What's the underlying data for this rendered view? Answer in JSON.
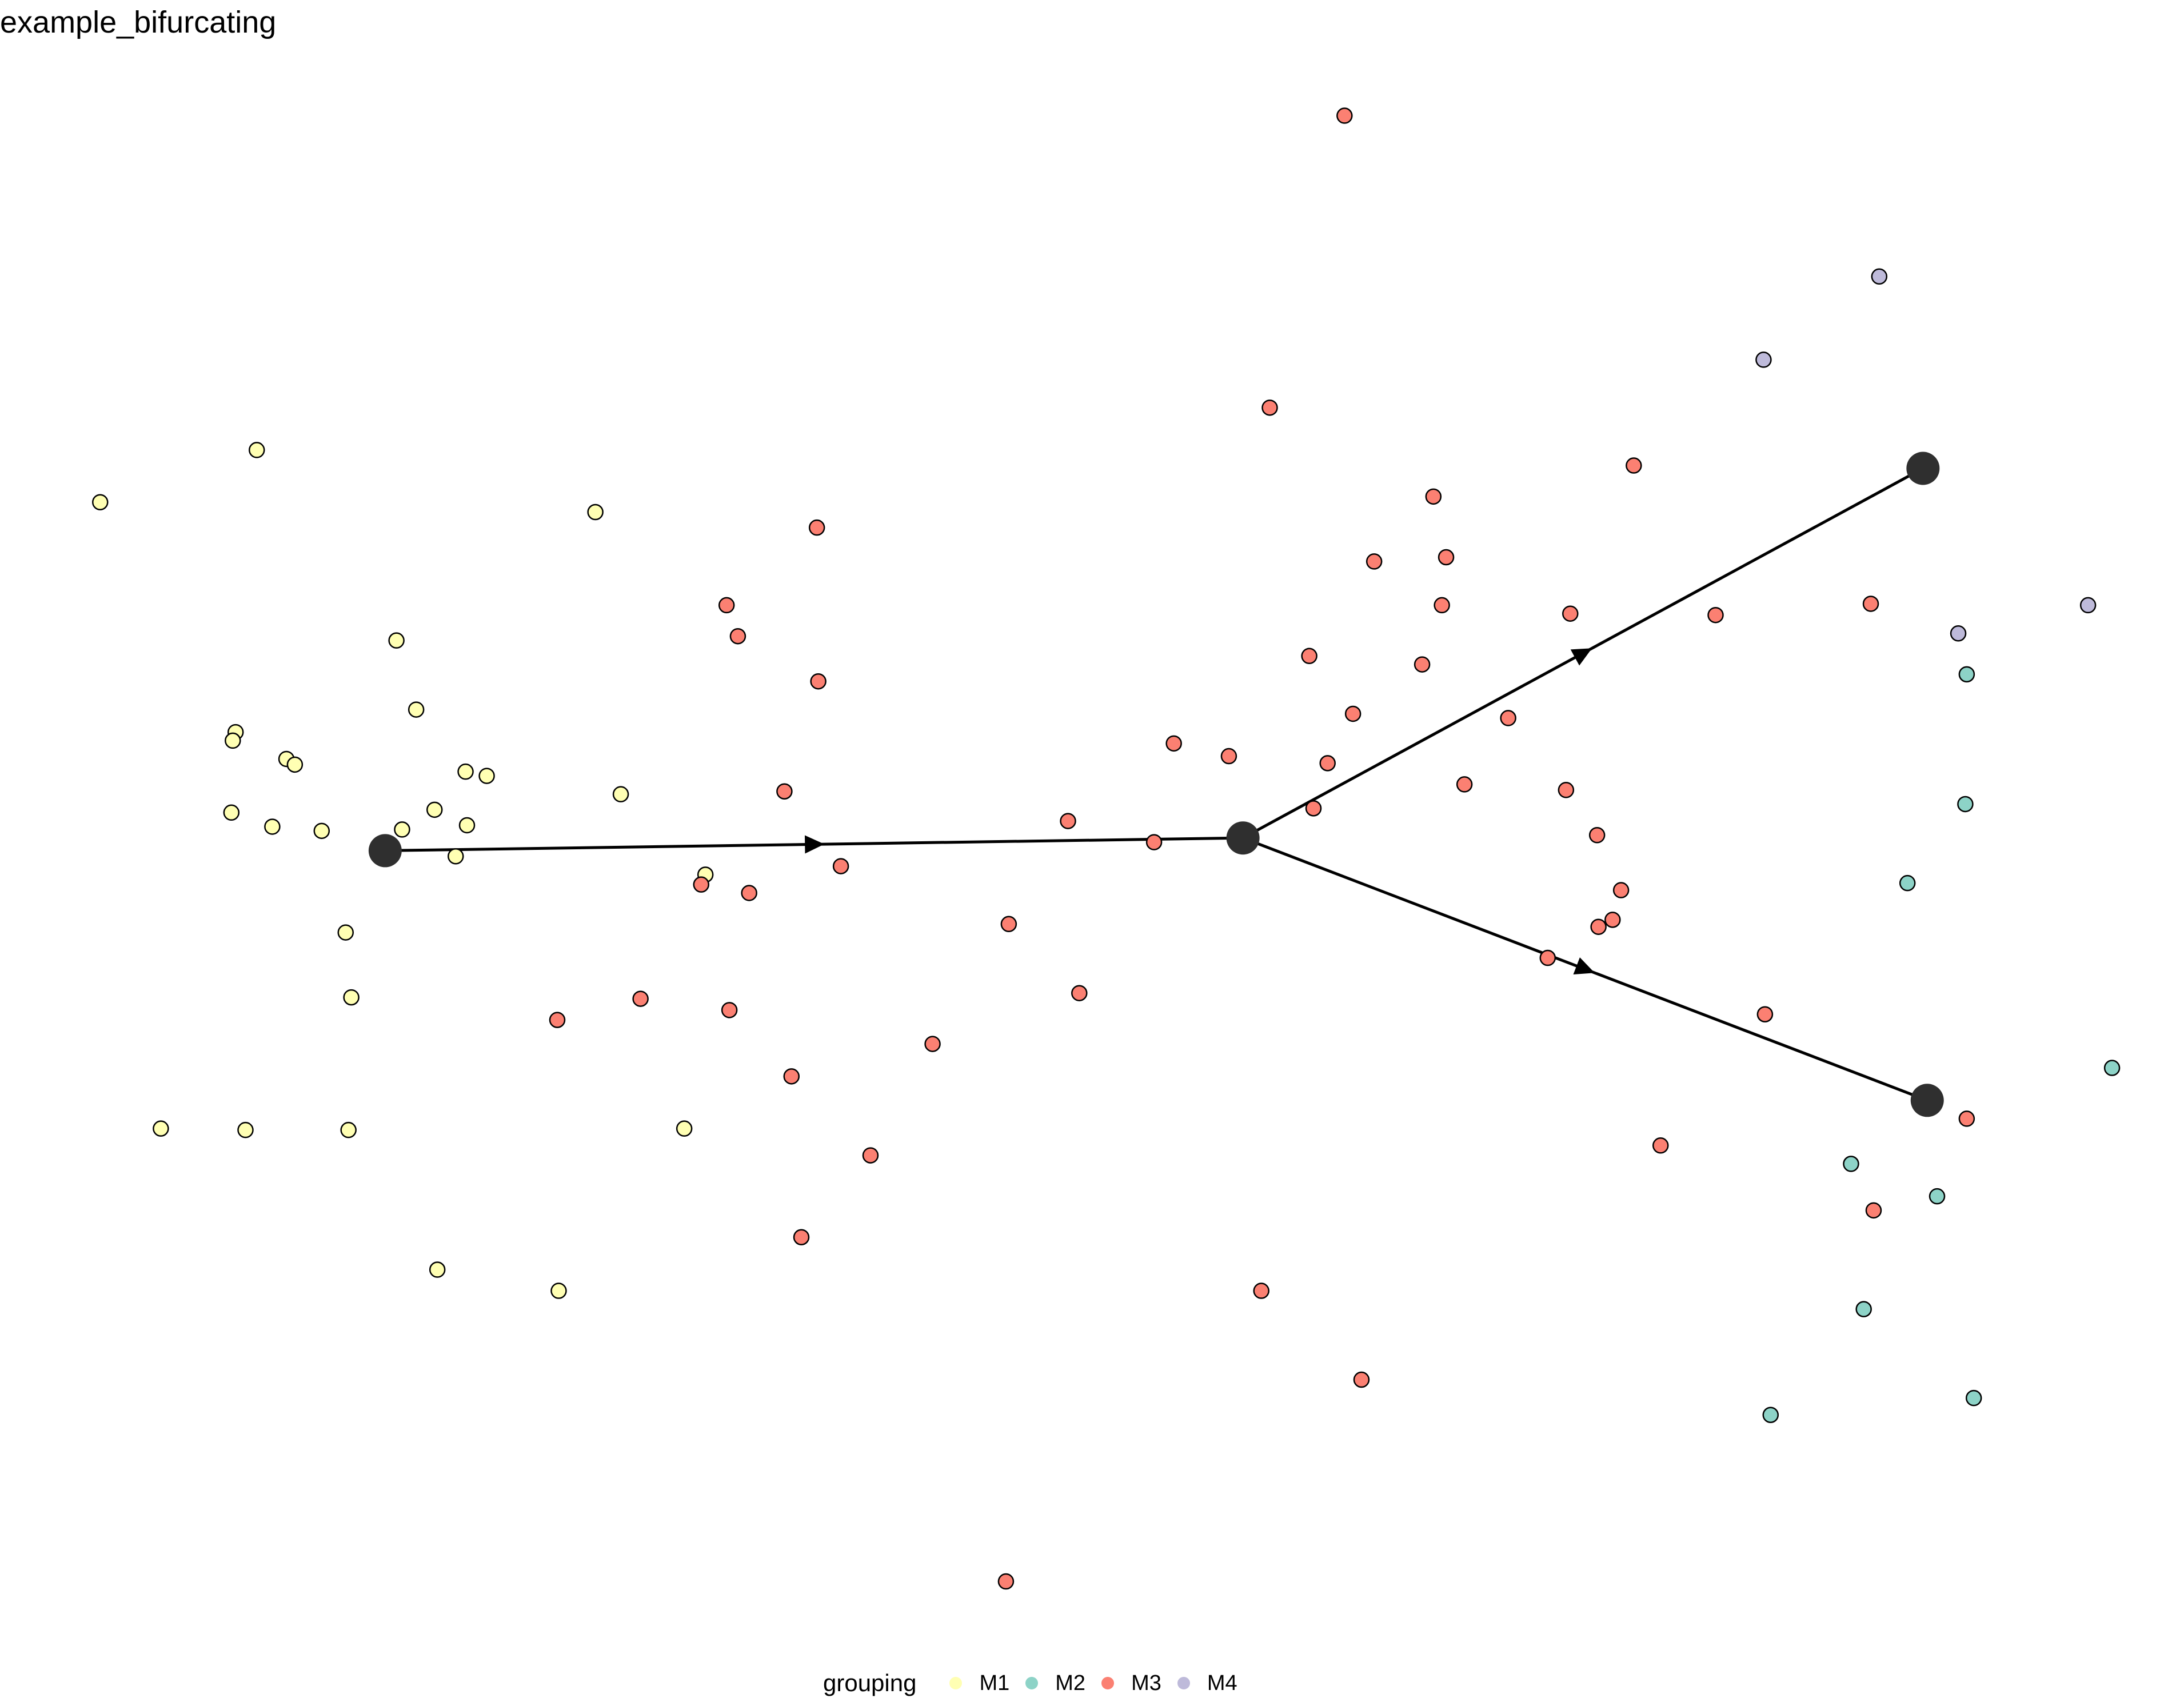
{
  "title": "example_bifurcating",
  "legend": {
    "title": "grouping",
    "placement": "bottom",
    "items": [
      {
        "label": "M1",
        "color": "#FFFFB3"
      },
      {
        "label": "M2",
        "color": "#8DD3C7"
      },
      {
        "label": "M3",
        "color": "#FB8072"
      },
      {
        "label": "M4",
        "color": "#BEBADA"
      }
    ]
  },
  "chart_data": {
    "type": "scatter",
    "title": "example_bifurcating",
    "xlabel": "",
    "ylabel": "",
    "axes_visible": false,
    "grid": false,
    "legend_placement": "bottom",
    "xlim": [
      0,
      1548
    ],
    "ylim": [
      1140,
      40
    ],
    "milestones": [
      {
        "x": 273,
        "y": 603
      },
      {
        "x": 881,
        "y": 594
      },
      {
        "x": 1363,
        "y": 332
      },
      {
        "x": 1366,
        "y": 780
      }
    ],
    "edges": [
      {
        "from": 0,
        "to": 1
      },
      {
        "from": 1,
        "to": 2
      },
      {
        "from": 1,
        "to": 3
      }
    ],
    "series": [
      {
        "name": "M1",
        "color": "#FFFFB3",
        "points": [
          [
            71,
            356
          ],
          [
            182,
            319
          ],
          [
            422,
            363
          ],
          [
            281,
            454
          ],
          [
            295,
            503
          ],
          [
            167,
            519
          ],
          [
            165,
            525
          ],
          [
            203,
            538
          ],
          [
            209,
            542
          ],
          [
            330,
            547
          ],
          [
            345,
            550
          ],
          [
            440,
            563
          ],
          [
            164,
            576
          ],
          [
            193,
            586
          ],
          [
            228,
            589
          ],
          [
            285,
            588
          ],
          [
            308,
            574
          ],
          [
            331,
            585
          ],
          [
            323,
            607
          ],
          [
            500,
            620
          ],
          [
            245,
            661
          ],
          [
            249,
            707
          ],
          [
            114,
            800
          ],
          [
            174,
            801
          ],
          [
            247,
            801
          ],
          [
            485,
            800
          ],
          [
            310,
            900
          ],
          [
            396,
            915
          ]
        ]
      },
      {
        "name": "M2",
        "color": "#8DD3C7",
        "points": [
          [
            1394,
            478
          ],
          [
            1393,
            570
          ],
          [
            1352,
            626
          ],
          [
            1497,
            757
          ],
          [
            1312,
            825
          ],
          [
            1373,
            848
          ],
          [
            1321,
            928
          ],
          [
            1399,
            991
          ],
          [
            1255,
            1003
          ]
        ]
      },
      {
        "name": "M3",
        "color": "#FB8072",
        "points": [
          [
            953,
            82
          ],
          [
            900,
            289
          ],
          [
            579,
            374
          ],
          [
            1158,
            330
          ],
          [
            1016,
            352
          ],
          [
            1025,
            395
          ],
          [
            974,
            398
          ],
          [
            1022,
            429
          ],
          [
            1113,
            435
          ],
          [
            1216,
            436
          ],
          [
            1326,
            428
          ],
          [
            515,
            429
          ],
          [
            523,
            451
          ],
          [
            580,
            483
          ],
          [
            928,
            465
          ],
          [
            1008,
            471
          ],
          [
            959,
            506
          ],
          [
            1069,
            509
          ],
          [
            832,
            527
          ],
          [
            871,
            536
          ],
          [
            941,
            541
          ],
          [
            1038,
            556
          ],
          [
            1110,
            560
          ],
          [
            556,
            561
          ],
          [
            757,
            582
          ],
          [
            931,
            573
          ],
          [
            1132,
            592
          ],
          [
            818,
            597
          ],
          [
            596,
            614
          ],
          [
            497,
            627
          ],
          [
            531,
            633
          ],
          [
            1149,
            631
          ],
          [
            1143,
            652
          ],
          [
            1133,
            657
          ],
          [
            715,
            655
          ],
          [
            1097,
            679
          ],
          [
            765,
            704
          ],
          [
            454,
            708
          ],
          [
            517,
            716
          ],
          [
            395,
            723
          ],
          [
            1251,
            719
          ],
          [
            661,
            740
          ],
          [
            561,
            763
          ],
          [
            1394,
            793
          ],
          [
            617,
            819
          ],
          [
            1177,
            812
          ],
          [
            1328,
            858
          ],
          [
            568,
            877
          ],
          [
            894,
            915
          ],
          [
            965,
            978
          ],
          [
            713,
            1121
          ]
        ]
      },
      {
        "name": "M4",
        "color": "#BEBADA",
        "points": [
          [
            1332,
            196
          ],
          [
            1250,
            255
          ],
          [
            1388,
            449
          ],
          [
            1480,
            429
          ]
        ]
      }
    ]
  }
}
